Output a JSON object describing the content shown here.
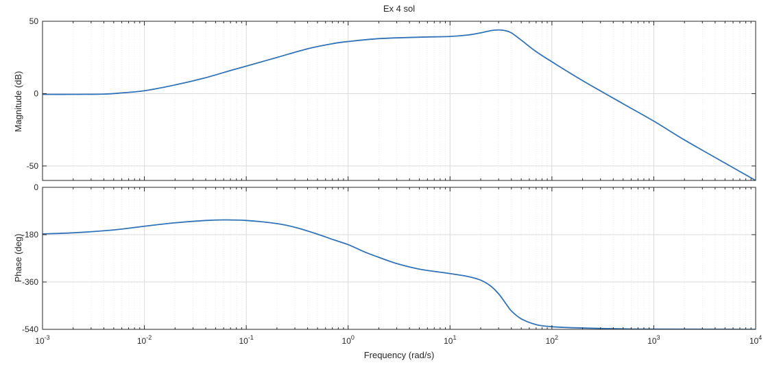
{
  "chart_data": {
    "type": "line",
    "title": "Ex 4 sol",
    "xlabel": "Frequency  (rad/s)",
    "xscale": "log",
    "xlim": [
      0.001,
      10000
    ],
    "x_tick_labels": [
      {
        "base": "10",
        "exp": "-3"
      },
      {
        "base": "10",
        "exp": "-2"
      },
      {
        "base": "10",
        "exp": "-1"
      },
      {
        "base": "10",
        "exp": "0"
      },
      {
        "base": "10",
        "exp": "1"
      },
      {
        "base": "10",
        "exp": "2"
      },
      {
        "base": "10",
        "exp": "3"
      },
      {
        "base": "10",
        "exp": "4"
      }
    ],
    "grid": true,
    "line_color": "#3072b8",
    "panels": [
      {
        "id": "magnitude",
        "ylabel": "Magnitude (dB)",
        "ylim": [
          -60,
          50
        ],
        "y_ticks": [
          50,
          0,
          -50
        ],
        "y_tick_labels": [
          "50",
          "0",
          "-50"
        ],
        "series": [
          {
            "x": [
              0.001,
              0.002,
              0.004,
              0.006,
              0.01,
              0.02,
              0.04,
              0.07,
              0.1,
              0.2,
              0.4,
              0.7,
              1,
              2,
              5,
              10,
              15,
              20,
              25,
              30,
              35,
              40,
              50,
              70,
              100,
              200,
              500,
              1000,
              2000,
              5000,
              10000
            ],
            "y": [
              -0.5,
              -0.5,
              -0.3,
              0.5,
              2,
              6,
              11,
              16,
              19,
              25,
              31,
              34.5,
              36,
              38,
              39,
              39.5,
              40.5,
              42,
              43.5,
              44,
              43.5,
              42,
              37,
              29,
              22,
              9,
              -7,
              -19,
              -32,
              -48,
              -60
            ]
          }
        ]
      },
      {
        "id": "phase",
        "ylabel": "Phase (deg)",
        "ylim": [
          -540,
          0
        ],
        "y_ticks": [
          0,
          -180,
          -360,
          -540
        ],
        "y_tick_labels": [
          "0",
          "-180",
          "-360",
          "-540"
        ],
        "series": [
          {
            "x": [
              0.001,
              0.002,
              0.005,
              0.01,
              0.02,
              0.04,
              0.06,
              0.1,
              0.2,
              0.3,
              0.5,
              0.7,
              1,
              1.5,
              2,
              3,
              5,
              10,
              15,
              20,
              25,
              30,
              35,
              40,
              50,
              70,
              100,
              200,
              500,
              1000,
              10000
            ],
            "y": [
              -177,
              -173,
              -162,
              -148,
              -135,
              -126,
              -124,
              -126,
              -138,
              -152,
              -178,
              -198,
              -218,
              -248,
              -266,
              -290,
              -311,
              -328,
              -339,
              -353,
              -375,
              -405,
              -440,
              -470,
              -500,
              -522,
              -530,
              -535,
              -538,
              -539,
              -540
            ]
          }
        ]
      }
    ]
  }
}
